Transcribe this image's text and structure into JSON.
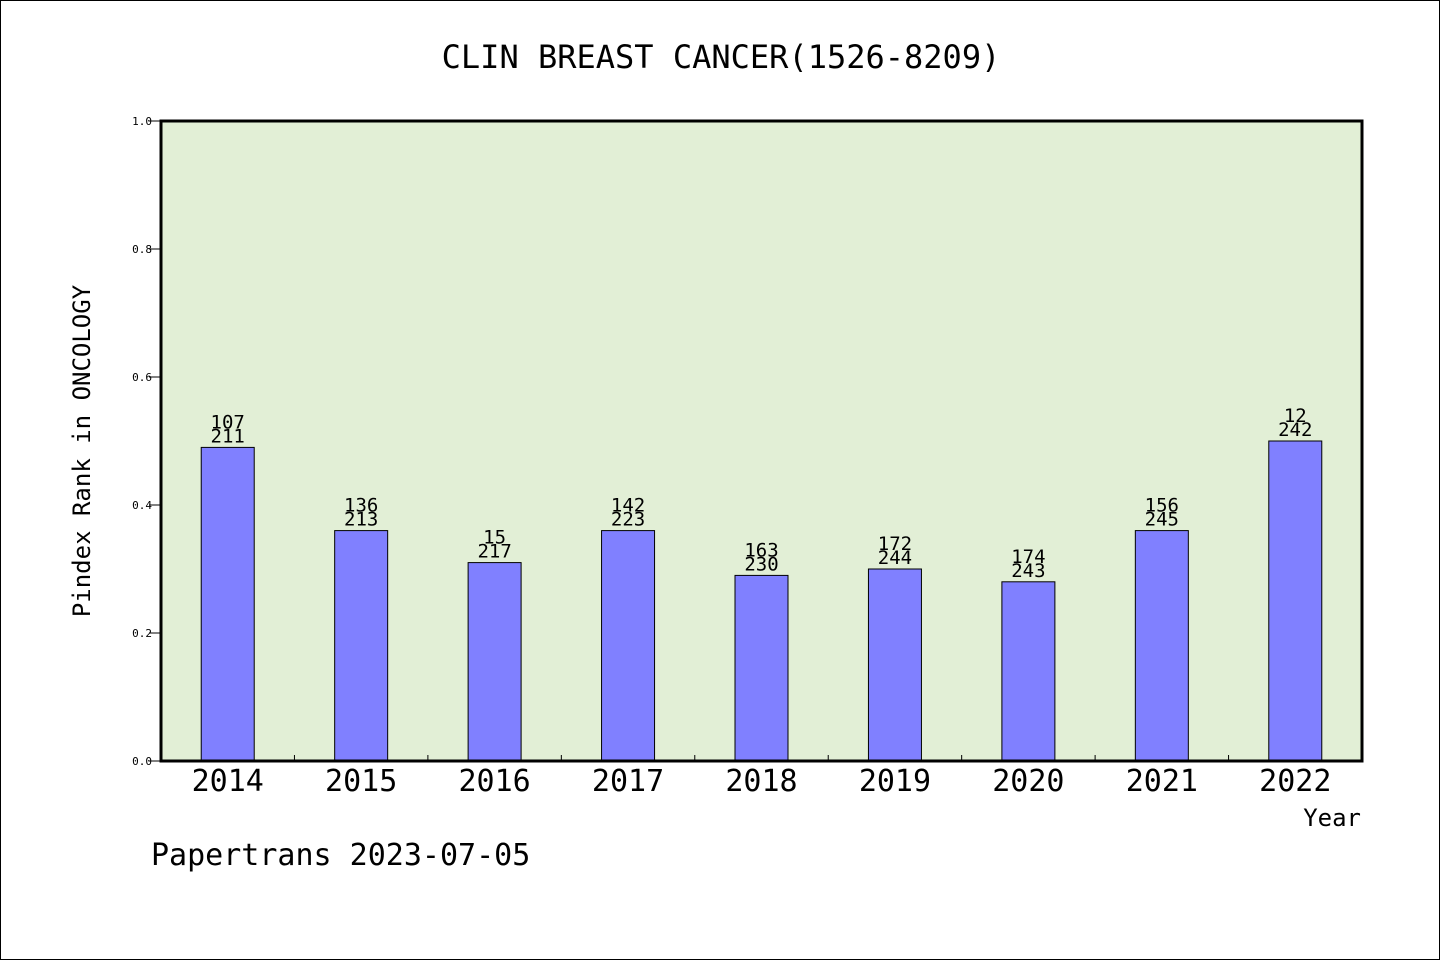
{
  "chart_data": {
    "type": "bar",
    "title": "CLIN BREAST CANCER(1526-8209)",
    "xlabel": "Year",
    "ylabel": "Pindex Rank in ONCOLOGY",
    "categories": [
      "2014",
      "2015",
      "2016",
      "2017",
      "2018",
      "2019",
      "2020",
      "2021",
      "2022"
    ],
    "values": [
      0.49,
      0.36,
      0.31,
      0.36,
      0.29,
      0.3,
      0.28,
      0.36,
      0.5
    ],
    "label_top": [
      "107",
      "136",
      "15",
      "142",
      "163",
      "172",
      "174",
      "156",
      "12"
    ],
    "label_bottom": [
      "211",
      "213",
      "217",
      "223",
      "230",
      "244",
      "243",
      "245",
      "242"
    ],
    "ylim": [
      0.0,
      1.0
    ],
    "yticks": [
      "0.0",
      "0.2",
      "0.4",
      "0.6",
      "0.8",
      "1.0"
    ],
    "ytick_values": [
      0.0,
      0.2,
      0.4,
      0.6,
      0.8,
      1.0
    ],
    "grid": false,
    "colors": {
      "bar": "#8080ff",
      "plot_background": "#e2efd6",
      "axes": "#000000"
    }
  },
  "footer": "Papertrans 2023-07-05"
}
